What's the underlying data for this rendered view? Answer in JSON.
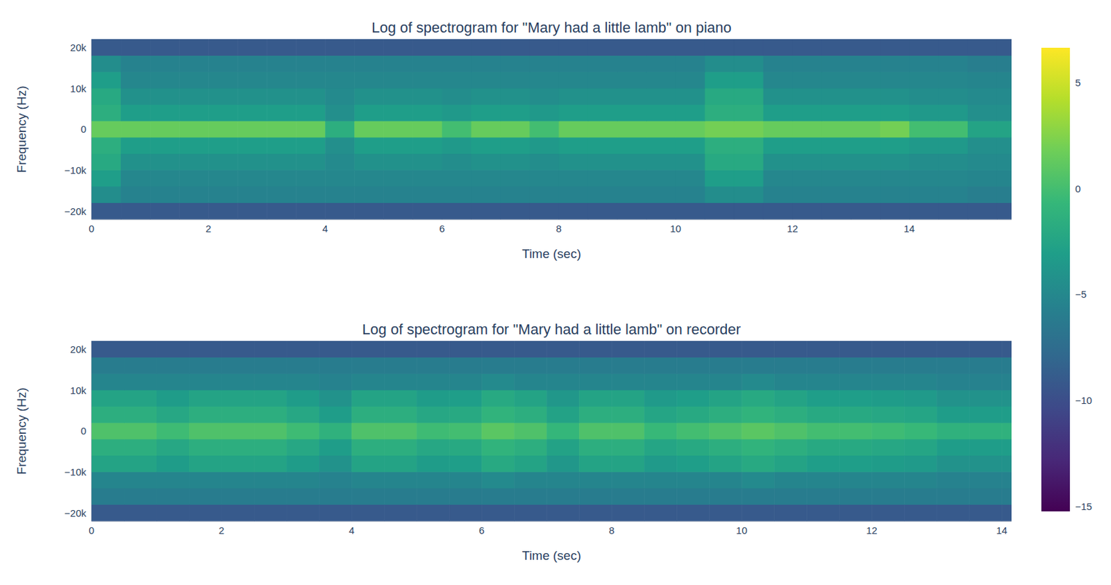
{
  "chart_data": [
    {
      "type": "heatmap",
      "title": "Log of spectrogram for \"Mary had a little lamb\" on piano",
      "x_label": "Time (sec)",
      "y_label": "Frequency (Hz)",
      "xlim": [
        0,
        15.75
      ],
      "xticks": [
        0,
        2,
        4,
        6,
        8,
        10,
        12,
        14
      ],
      "ylim": [
        -22050,
        22050
      ],
      "yticks": [
        {
          "value": -20000,
          "label": "−20k"
        },
        {
          "value": -10000,
          "label": "−10k"
        },
        0,
        {
          "value": 10000,
          "label": "10k"
        },
        {
          "value": 20000,
          "label": "20k"
        }
      ],
      "colorbar": {
        "zlim": [
          -15.2,
          6.7
        ],
        "zticks": [
          {
            "value": -15,
            "label": "−15"
          },
          {
            "value": -10,
            "label": "−10"
          },
          {
            "value": -5,
            "label": "−5"
          },
          0,
          5
        ]
      },
      "x": [
        0.25,
        0.75,
        1.25,
        1.75,
        2.25,
        2.75,
        3.25,
        3.75,
        4.25,
        4.75,
        5.25,
        5.75,
        6.25,
        6.75,
        7.25,
        7.75,
        8.25,
        8.75,
        9.25,
        9.75,
        10.25,
        10.75,
        11.25,
        11.75,
        12.25,
        12.75,
        13.25,
        13.75,
        14.25,
        14.75,
        15.25,
        15.75
      ],
      "y": [
        -20000,
        -16000,
        -12000,
        -8000,
        -4000,
        0,
        4000,
        8000,
        12000,
        16000,
        20000
      ],
      "z": [
        [
          -9,
          -9,
          -9,
          -9,
          -9,
          -9,
          -9,
          -9,
          -9,
          -9,
          -9,
          -9,
          -9,
          -9,
          -9,
          -9,
          -9,
          -9,
          -9,
          -9,
          -9,
          -9,
          -9,
          -9,
          -9,
          -9,
          -9,
          -9,
          -9,
          -9,
          -9,
          -9
        ],
        [
          -4.5,
          -5.5,
          -5.5,
          -5.5,
          -5.5,
          -5.5,
          -5.5,
          -5.5,
          -5.5,
          -5.5,
          -5.5,
          -5.5,
          -5.5,
          -5.5,
          -5.5,
          -5.5,
          -5.5,
          -5.5,
          -5.5,
          -5.5,
          -5.5,
          -4.5,
          -4.5,
          -5.5,
          -5.5,
          -5.5,
          -5.5,
          -5.5,
          -5.5,
          -5.5,
          -5.8,
          -5.8
        ],
        [
          -3,
          -5,
          -5,
          -5,
          -5,
          -5,
          -5,
          -5,
          -5,
          -5,
          -5,
          -5,
          -5,
          -5,
          -5,
          -5,
          -5,
          -5,
          -5,
          -5,
          -5,
          -3,
          -3,
          -5,
          -5,
          -5,
          -5,
          -5,
          -5,
          -5,
          -5.2,
          -5.2
        ],
        [
          -2,
          -4.2,
          -4.2,
          -4.2,
          -4.2,
          -4.2,
          -4.2,
          -4.2,
          -4.8,
          -4.2,
          -4.2,
          -4.2,
          -4.5,
          -4.2,
          -4.2,
          -4.5,
          -4.2,
          -4.2,
          -4.2,
          -4.2,
          -4.2,
          -2,
          -2,
          -4.2,
          -4.2,
          -4.2,
          -4.2,
          -4.2,
          -4.5,
          -4.5,
          -4.8,
          -4.8
        ],
        [
          -1.5,
          -3,
          -3,
          -3,
          -3,
          -3,
          -3,
          -3,
          -4.3,
          -3,
          -3,
          -3,
          -3.5,
          -3,
          -3,
          -3.5,
          -3,
          -3,
          -3,
          -3,
          -3,
          -1.5,
          -1.5,
          -3,
          -3,
          -3,
          -3,
          -3,
          -3.5,
          -3.5,
          -4.3,
          -4.3
        ],
        [
          1.5,
          1.5,
          1.5,
          1.5,
          1.5,
          1.5,
          1.5,
          1.5,
          -1.5,
          1.5,
          1.5,
          1.5,
          0,
          1.5,
          1.5,
          0,
          1.5,
          1.5,
          1.5,
          1.5,
          1.5,
          2,
          2,
          1.5,
          1.5,
          1.5,
          1.5,
          2,
          0,
          0,
          -2.5,
          -2.5
        ],
        [
          -1.5,
          -3,
          -3,
          -3,
          -3,
          -3,
          -3,
          -3,
          -4.3,
          -3,
          -3,
          -3,
          -3.5,
          -3,
          -3,
          -3.5,
          -3,
          -3,
          -3,
          -3,
          -3,
          -1.5,
          -1.5,
          -3,
          -3,
          -3,
          -3,
          -3,
          -3.5,
          -3.5,
          -4.3,
          -4.3
        ],
        [
          -2,
          -4.2,
          -4.2,
          -4.2,
          -4.2,
          -4.2,
          -4.2,
          -4.2,
          -4.8,
          -4.2,
          -4.2,
          -4.2,
          -4.5,
          -4.2,
          -4.2,
          -4.5,
          -4.2,
          -4.2,
          -4.2,
          -4.2,
          -4.2,
          -2,
          -2,
          -4.2,
          -4.2,
          -4.2,
          -4.2,
          -4.2,
          -4.5,
          -4.5,
          -4.8,
          -4.8
        ],
        [
          -3,
          -5,
          -5,
          -5,
          -5,
          -5,
          -5,
          -5,
          -5,
          -5,
          -5,
          -5,
          -5,
          -5,
          -5,
          -5,
          -5,
          -5,
          -5,
          -5,
          -5,
          -3,
          -3,
          -5,
          -5,
          -5,
          -5,
          -5,
          -5,
          -5,
          -5.2,
          -5.2
        ],
        [
          -4.5,
          -5.5,
          -5.5,
          -5.5,
          -5.5,
          -5.5,
          -5.5,
          -5.5,
          -5.5,
          -5.5,
          -5.5,
          -5.5,
          -5.5,
          -5.5,
          -5.5,
          -5.5,
          -5.5,
          -5.5,
          -5.5,
          -5.5,
          -5.5,
          -4.5,
          -4.5,
          -5.5,
          -5.5,
          -5.5,
          -5.5,
          -5.5,
          -5.5,
          -5.5,
          -5.8,
          -5.8
        ],
        [
          -9,
          -9,
          -9,
          -9,
          -9,
          -9,
          -9,
          -9,
          -9,
          -9,
          -9,
          -9,
          -9,
          -9,
          -9,
          -9,
          -9,
          -9,
          -9,
          -9,
          -9,
          -9,
          -9,
          -9,
          -9,
          -9,
          -9,
          -9,
          -9,
          -9,
          -9,
          -9
        ]
      ]
    },
    {
      "type": "heatmap",
      "title": "Log of spectrogram for \"Mary had a little lamb\" on recorder",
      "x_label": "Time (sec)",
      "y_label": "Frequency (Hz)",
      "xlim": [
        0,
        14.15
      ],
      "xticks": [
        0,
        2,
        4,
        6,
        8,
        10,
        12,
        14
      ],
      "ylim": [
        -22050,
        22050
      ],
      "yticks": [
        {
          "value": -20000,
          "label": "−20k"
        },
        {
          "value": -10000,
          "label": "−10k"
        },
        0,
        {
          "value": 10000,
          "label": "10k"
        },
        {
          "value": 20000,
          "label": "20k"
        }
      ],
      "x": [
        0.25,
        0.75,
        1.25,
        1.75,
        2.25,
        2.75,
        3.25,
        3.75,
        4.25,
        4.75,
        5.25,
        5.75,
        6.25,
        6.75,
        7.25,
        7.75,
        8.25,
        8.75,
        9.25,
        9.75,
        10.25,
        10.75,
        11.25,
        11.75,
        12.25,
        12.75,
        13.25,
        13.75,
        14.25
      ],
      "y": [
        -20000,
        -16000,
        -12000,
        -8000,
        -4000,
        0,
        4000,
        8000,
        12000,
        16000,
        20000
      ],
      "z": [
        [
          -9,
          -9,
          -9,
          -9,
          -9,
          -9,
          -9,
          -9,
          -9,
          -9,
          -9,
          -9,
          -9,
          -9,
          -9,
          -9,
          -9,
          -9,
          -9,
          -9,
          -9,
          -9,
          -9,
          -9,
          -9,
          -9,
          -9,
          -9,
          -9
        ],
        [
          -6,
          -6,
          -6,
          -6,
          -6,
          -6,
          -6,
          -6,
          -6,
          -6,
          -6,
          -6,
          -6,
          -6,
          -6,
          -6,
          -6,
          -6,
          -6,
          -6,
          -6,
          -6,
          -6,
          -6,
          -6,
          -6,
          -6,
          -6,
          -6
        ],
        [
          -5.2,
          -5.2,
          -5.2,
          -5.2,
          -5.2,
          -5.2,
          -5.2,
          -5.5,
          -5.2,
          -5.2,
          -5.2,
          -5.2,
          -4.8,
          -5.2,
          -5.2,
          -5.2,
          -5.2,
          -5.2,
          -5.2,
          -5.2,
          -4.8,
          -5.2,
          -5.2,
          -5.2,
          -5.2,
          -5.2,
          -5.5,
          -5.5,
          -5.5
        ],
        [
          -2.5,
          -2.5,
          -3.2,
          -2.5,
          -2.5,
          -2.5,
          -3.2,
          -4.1,
          -2.5,
          -2.5,
          -3.2,
          -3,
          -2,
          -2.5,
          -3.6,
          -2.5,
          -2.5,
          -3.4,
          -3,
          -2.5,
          -2,
          -2.5,
          -3,
          -3,
          -3.2,
          -3.4,
          -4.1,
          -4.1,
          -4.1
        ],
        [
          -1.5,
          -1.5,
          -2.2,
          -1.5,
          -1.5,
          -1.5,
          -2.2,
          -3.1,
          -1.5,
          -1.5,
          -2.2,
          -2,
          -1,
          -1.5,
          -2.6,
          -1.5,
          -1.5,
          -2.4,
          -2,
          -1.5,
          -1,
          -1.5,
          -2,
          -2,
          -2.2,
          -2.4,
          -3.1,
          -3.1,
          -3.1
        ],
        [
          0.5,
          0.5,
          -0.2,
          0.5,
          0.5,
          0.5,
          -0.2,
          -1.2,
          0.5,
          0.5,
          -0.2,
          0,
          1,
          0.5,
          -0.7,
          0.5,
          0.5,
          -0.5,
          0,
          0.5,
          1,
          0.5,
          0,
          0,
          -0.2,
          -0.5,
          -1.2,
          -1.2,
          -1.2
        ],
        [
          -1.5,
          -1.5,
          -2.2,
          -1.5,
          -1.5,
          -1.5,
          -2.2,
          -3.1,
          -1.5,
          -1.5,
          -2.2,
          -2,
          -1,
          -1.5,
          -2.6,
          -1.5,
          -1.5,
          -2.4,
          -2,
          -1.5,
          -1,
          -1.5,
          -2,
          -2,
          -2.2,
          -2.4,
          -3.1,
          -3.1,
          -3.1
        ],
        [
          -2.5,
          -2.5,
          -3.2,
          -2.5,
          -2.5,
          -2.5,
          -3.2,
          -4.1,
          -2.5,
          -2.5,
          -3.2,
          -3,
          -2,
          -2.5,
          -3.6,
          -2.5,
          -2.5,
          -3.4,
          -3,
          -2.5,
          -2,
          -2.5,
          -3,
          -3,
          -3.2,
          -3.4,
          -4.1,
          -4.1,
          -4.1
        ],
        [
          -5.2,
          -5.2,
          -5.2,
          -5.2,
          -5.2,
          -5.2,
          -5.2,
          -5.5,
          -5.2,
          -5.2,
          -5.2,
          -5.2,
          -4.8,
          -5.2,
          -5.2,
          -5.2,
          -5.2,
          -5.2,
          -5.2,
          -5.2,
          -4.8,
          -5.2,
          -5.2,
          -5.2,
          -5.2,
          -5.2,
          -5.5,
          -5.5,
          -5.5
        ],
        [
          -6,
          -6,
          -6,
          -6,
          -6,
          -6,
          -6,
          -6,
          -6,
          -6,
          -6,
          -6,
          -6,
          -6,
          -6,
          -6,
          -6,
          -6,
          -6,
          -6,
          -6,
          -6,
          -6,
          -6,
          -6,
          -6,
          -6,
          -6,
          -6
        ],
        [
          -9,
          -9,
          -9,
          -9,
          -9,
          -9,
          -9,
          -9,
          -9,
          -9,
          -9,
          -9,
          -9,
          -9,
          -9,
          -9,
          -9,
          -9,
          -9,
          -9,
          -9,
          -9,
          -9,
          -9,
          -9,
          -9,
          -9,
          -9,
          -9
        ]
      ]
    }
  ]
}
